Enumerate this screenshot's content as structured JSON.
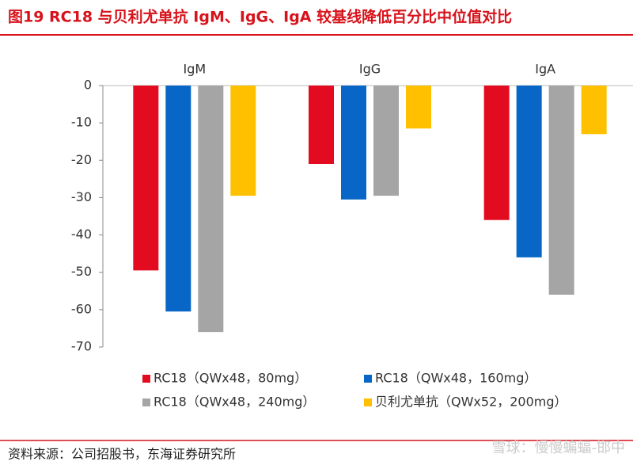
{
  "chart_data": {
    "type": "bar",
    "title": "图19  RC18 与贝利尤单抗 IgM、IgG、IgA 较基线降低百分比中位值对比",
    "categories": [
      "IgM",
      "IgG",
      "IgA"
    ],
    "series": [
      {
        "name": "RC18（QWx48，80mg）",
        "color": "#e30b20",
        "values": [
          -49.5,
          -21,
          -36
        ]
      },
      {
        "name": "RC18（QWx48，160mg）",
        "color": "#0866c6",
        "values": [
          -60.5,
          -30.5,
          -46
        ]
      },
      {
        "name": "RC18（QWx48，240mg）",
        "color": "#a5a5a5",
        "values": [
          -66,
          -29.5,
          -56
        ]
      },
      {
        "name": "贝利尤单抗（QWx52，200mg）",
        "color": "#ffc000",
        "values": [
          -29.5,
          -11.5,
          -13
        ]
      }
    ],
    "ylim": [
      -70,
      0
    ],
    "yticks": [
      0,
      -10,
      -20,
      -30,
      -40,
      -50,
      -60,
      -70
    ],
    "source": "资料来源：公司招股书，东海证券研究所",
    "watermark": "雪球：慢慢蝙蝠-邯中"
  }
}
